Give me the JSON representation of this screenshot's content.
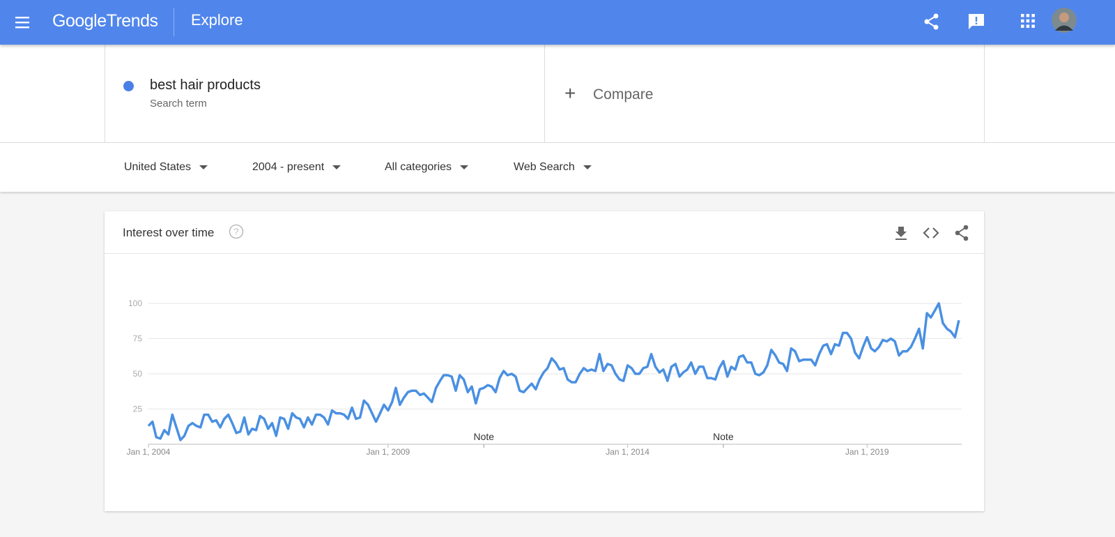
{
  "header": {
    "logo_google": "Google",
    "logo_trends": "Trends",
    "page": "Explore"
  },
  "search": {
    "term": "best hair products",
    "term_type": "Search term",
    "compare": "Compare"
  },
  "filters": [
    "United States",
    "2004 - present",
    "All categories",
    "Web Search"
  ],
  "card": {
    "title": "Interest over time"
  },
  "chart_data": {
    "type": "line",
    "x": [
      "2004-01-01",
      "2004-02-01",
      "2004-03-01",
      "2004-04-01",
      "2004-05-01",
      "2004-06-01",
      "2004-07-01",
      "2004-08-01",
      "2004-09-01",
      "2004-10-01",
      "2004-11-01",
      "2004-12-01",
      "2005-01-01",
      "2005-02-01",
      "2005-03-01",
      "2005-04-01",
      "2005-05-01",
      "2005-06-01",
      "2005-07-01",
      "2005-08-01",
      "2005-09-01",
      "2005-10-01",
      "2005-11-01",
      "2005-12-01",
      "2006-01-01",
      "2006-02-01",
      "2006-03-01",
      "2006-04-01",
      "2006-05-01",
      "2006-06-01",
      "2006-07-01",
      "2006-08-01",
      "2006-09-01",
      "2006-10-01",
      "2006-11-01",
      "2006-12-01",
      "2007-01-01",
      "2007-02-01",
      "2007-03-01",
      "2007-04-01",
      "2007-05-01",
      "2007-06-01",
      "2007-07-01",
      "2007-08-01",
      "2007-09-01",
      "2007-10-01",
      "2007-11-01",
      "2007-12-01",
      "2008-01-01",
      "2008-02-01",
      "2008-03-01",
      "2008-04-01",
      "2008-05-01",
      "2008-06-01",
      "2008-07-01",
      "2008-08-01",
      "2008-09-01",
      "2008-10-01",
      "2008-11-01",
      "2008-12-01",
      "2009-01-01",
      "2009-02-01",
      "2009-03-01",
      "2009-04-01",
      "2009-05-01",
      "2009-06-01",
      "2009-07-01",
      "2009-08-01",
      "2009-09-01",
      "2009-10-01",
      "2009-11-01",
      "2009-12-01",
      "2010-01-01",
      "2010-02-01",
      "2010-03-01",
      "2010-04-01",
      "2010-05-01",
      "2010-06-01",
      "2010-07-01",
      "2010-08-01",
      "2010-09-01",
      "2010-10-01",
      "2010-11-01",
      "2010-12-01",
      "2011-01-01",
      "2011-02-01",
      "2011-03-01",
      "2011-04-01",
      "2011-05-01",
      "2011-06-01",
      "2011-07-01",
      "2011-08-01",
      "2011-09-01",
      "2011-10-01",
      "2011-11-01",
      "2011-12-01",
      "2012-01-01",
      "2012-02-01",
      "2012-03-01",
      "2012-04-01",
      "2012-05-01",
      "2012-06-01",
      "2012-07-01",
      "2012-08-01",
      "2012-09-01",
      "2012-10-01",
      "2012-11-01",
      "2012-12-01",
      "2013-01-01",
      "2013-02-01",
      "2013-03-01",
      "2013-04-01",
      "2013-05-01",
      "2013-06-01",
      "2013-07-01",
      "2013-08-01",
      "2013-09-01",
      "2013-10-01",
      "2013-11-01",
      "2013-12-01",
      "2014-01-01",
      "2014-02-01",
      "2014-03-01",
      "2014-04-01",
      "2014-05-01",
      "2014-06-01",
      "2014-07-01",
      "2014-08-01",
      "2014-09-01",
      "2014-10-01",
      "2014-11-01",
      "2014-12-01",
      "2015-01-01",
      "2015-02-01",
      "2015-03-01",
      "2015-04-01",
      "2015-05-01",
      "2015-06-01",
      "2015-07-01",
      "2015-08-01",
      "2015-09-01",
      "2015-10-01",
      "2015-11-01",
      "2015-12-01",
      "2016-01-01",
      "2016-02-01",
      "2016-03-01",
      "2016-04-01",
      "2016-05-01",
      "2016-06-01",
      "2016-07-01",
      "2016-08-01",
      "2016-09-01",
      "2016-10-01",
      "2016-11-01",
      "2016-12-01",
      "2017-01-01",
      "2017-02-01",
      "2017-03-01",
      "2017-04-01",
      "2017-05-01",
      "2017-06-01",
      "2017-07-01",
      "2017-08-01",
      "2017-09-01",
      "2017-10-01",
      "2017-11-01",
      "2017-12-01",
      "2018-01-01",
      "2018-02-01",
      "2018-03-01",
      "2018-04-01",
      "2018-05-01",
      "2018-06-01",
      "2018-07-01",
      "2018-08-01",
      "2018-09-01",
      "2018-10-01",
      "2018-11-01",
      "2018-12-01",
      "2019-01-01",
      "2019-02-01",
      "2019-03-01",
      "2019-04-01",
      "2019-05-01",
      "2019-06-01",
      "2019-07-01",
      "2019-08-01",
      "2019-09-01",
      "2019-10-01",
      "2019-11-01",
      "2019-12-01",
      "2020-01-01",
      "2020-02-01",
      "2020-03-01",
      "2020-04-01",
      "2020-05-01",
      "2020-06-01",
      "2020-07-01",
      "2020-08-01",
      "2020-09-01",
      "2020-10-01",
      "2020-11-01",
      "2020-12-01"
    ],
    "series": [
      {
        "name": "best hair products",
        "color": "#4a90e2",
        "values": [
          13,
          16,
          5,
          4,
          10,
          7,
          21,
          12,
          3,
          6,
          13,
          15,
          13,
          12,
          21,
          21,
          16,
          17,
          12,
          18,
          21,
          15,
          8,
          9,
          19,
          7,
          11,
          10,
          20,
          18,
          11,
          15,
          6,
          19,
          18,
          11,
          22,
          19,
          18,
          12,
          19,
          14,
          21,
          21,
          19,
          14,
          24,
          22,
          22,
          21,
          18,
          26,
          18,
          19,
          31,
          28,
          22,
          16,
          22,
          28,
          24,
          30,
          40,
          28,
          33,
          37,
          38,
          38,
          35,
          36,
          33,
          30,
          40,
          45,
          49,
          49,
          48,
          38,
          49,
          46,
          37,
          41,
          29,
          39,
          40,
          42,
          41,
          37,
          47,
          52,
          49,
          50,
          48,
          38,
          37,
          40,
          43,
          39,
          46,
          51,
          54,
          61,
          58,
          53,
          54,
          46,
          44,
          44,
          50,
          54,
          52,
          53,
          52,
          64,
          52,
          57,
          56,
          50,
          46,
          45,
          56,
          54,
          50,
          50,
          54,
          55,
          64,
          55,
          51,
          53,
          45,
          55,
          57,
          48,
          51,
          53,
          58,
          50,
          55,
          55,
          47,
          47,
          46,
          54,
          59,
          48,
          55,
          53,
          62,
          63,
          58,
          58,
          50,
          49,
          51,
          56,
          67,
          63,
          58,
          57,
          52,
          68,
          66,
          59,
          60,
          60,
          60,
          56,
          64,
          70,
          71,
          64,
          71,
          70,
          79,
          79,
          75,
          65,
          61,
          69,
          76,
          68,
          66,
          69,
          74,
          73,
          75,
          73,
          63,
          66,
          66,
          69,
          75,
          82,
          68,
          93,
          90,
          95,
          100,
          86,
          82,
          80,
          76,
          88
        ]
      }
    ],
    "xlim": [
      "2004-01-01",
      "2020-12-01"
    ],
    "xticks": [
      {
        "value": "2004-01-01",
        "label": "Jan 1, 2004"
      },
      {
        "value": "2009-01-01",
        "label": "Jan 1, 2009"
      },
      {
        "value": "2014-01-01",
        "label": "Jan 1, 2014"
      },
      {
        "value": "2019-01-01",
        "label": "Jan 1, 2019"
      }
    ],
    "ylim": [
      0,
      100
    ],
    "yticks": [
      25,
      50,
      75,
      100
    ],
    "grid": true,
    "annotations": [
      {
        "x": "2011-01-01",
        "label": "Note"
      },
      {
        "x": "2016-01-01",
        "label": "Note"
      }
    ]
  }
}
